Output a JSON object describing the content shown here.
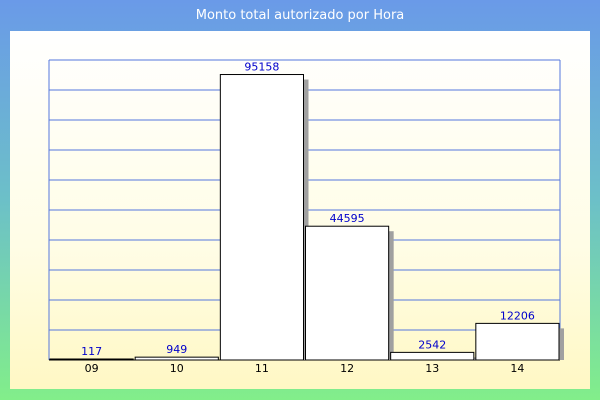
{
  "chart_data": {
    "type": "bar",
    "title": "Monto total autorizado por Hora",
    "categories": [
      "09",
      "10",
      "11",
      "12",
      "13",
      "14"
    ],
    "values": [
      117,
      949,
      95158,
      44595,
      2542,
      12206
    ],
    "data_labels": [
      "117",
      "949",
      "95158",
      "44595",
      "2542",
      "12206"
    ],
    "xlabel": "",
    "ylabel": "",
    "ylim": [
      0,
      100000
    ],
    "grid": true,
    "legend": "none",
    "colors": {
      "bar_fill": "#ffffff",
      "bar_stroke": "#000000",
      "bar_shadow": "#a0a0a0",
      "grid": "#5577dd",
      "value_label": "#0000cc"
    }
  }
}
